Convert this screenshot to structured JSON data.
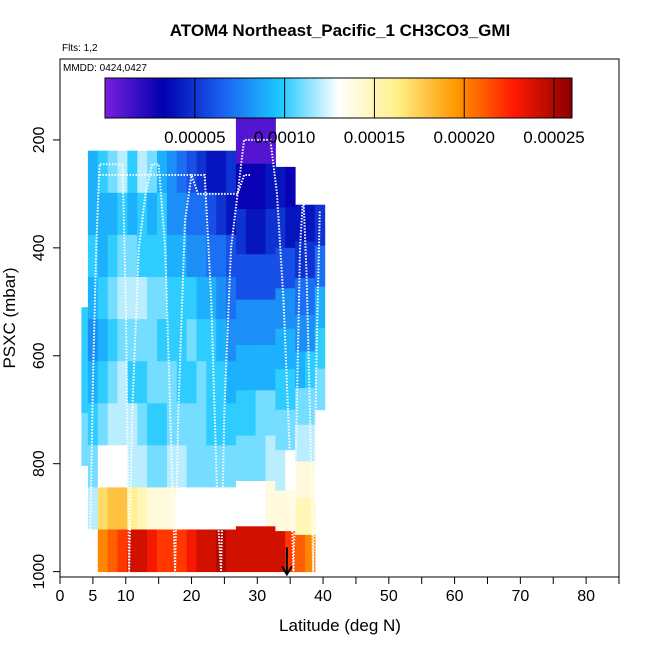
{
  "chart_data": {
    "type": "heatmap",
    "title": "ATOM4 Northeast_Pacific_1 CH3CO3_GMI",
    "flights_label": "Flts: 1,2",
    "dates_label": "MMDD: 0424,0427",
    "xlabel": "Latitude (deg N)",
    "ylabel": "PSXC (mbar)",
    "xlim": [
      0,
      85
    ],
    "ylim": [
      1010,
      50
    ],
    "y_reversed": true,
    "x_ticks": [
      0,
      5,
      10,
      20,
      30,
      40,
      50,
      60,
      70,
      80
    ],
    "y_ticks": [
      200,
      400,
      600,
      800,
      1000
    ],
    "colorbar": {
      "min": 0.0,
      "max": 0.00026,
      "ticks": [
        5e-05,
        0.0001,
        0.00015,
        0.0002,
        0.00025
      ],
      "tick_labels": [
        "0.00005",
        "0.00010",
        "0.00015",
        "0.00020",
        "0.00025"
      ],
      "colors": [
        "#7a1fe0",
        "#0000b0",
        "#1a5ff0",
        "#1ec8ff",
        "#ffffff",
        "#fff08a",
        "#ff9a00",
        "#ff1a00",
        "#8a0000"
      ]
    },
    "columns": [
      {
        "lat": 4.0,
        "p_top": 510,
        "p_bottom": 1000,
        "values": [
          0.0001,
          0.0001,
          0.00011,
          0.00013,
          0.00013
        ]
      },
      {
        "lat": 5.0,
        "p_top": 220,
        "p_bottom": 1000,
        "values": [
          9e-05,
          9e-05,
          0.0001,
          9e-05,
          8e-05,
          9e-05,
          0.0001,
          0.00011,
          0.00012,
          0.00013
        ]
      },
      {
        "lat": 6.5,
        "p_top": 220,
        "p_bottom": 1000,
        "values": [
          0.0001,
          9e-05,
          9e-05,
          0.0001,
          9e-05,
          0.0001,
          0.00011,
          0.00013,
          0.00017,
          0.0002
        ]
      },
      {
        "lat": 8.0,
        "p_top": 220,
        "p_bottom": 1000,
        "values": [
          0.00011,
          9e-05,
          0.0001,
          0.00011,
          0.0001,
          0.00011,
          0.00012,
          0.00013,
          0.00018,
          0.00021
        ]
      },
      {
        "lat": 9.5,
        "p_top": 220,
        "p_bottom": 1000,
        "values": [
          0.00012,
          0.0001,
          0.00011,
          0.00012,
          0.00011,
          0.00012,
          0.00012,
          0.00013,
          0.00018,
          0.00022
        ]
      },
      {
        "lat": 11.0,
        "p_top": 220,
        "p_bottom": 1000,
        "values": [
          0.0001,
          9e-05,
          0.00011,
          0.00012,
          0.00011,
          0.0001,
          0.00012,
          0.00012,
          0.00016,
          0.00024
        ]
      },
      {
        "lat": 12.5,
        "p_top": 220,
        "p_bottom": 1000,
        "values": [
          0.00012,
          0.0001,
          0.0001,
          0.00012,
          0.00011,
          0.0001,
          0.00011,
          0.00012,
          0.00015,
          0.00024
        ]
      },
      {
        "lat": 14.0,
        "p_top": 220,
        "p_bottom": 1000,
        "values": [
          0.00011,
          9e-05,
          0.0001,
          0.00011,
          0.00011,
          0.00011,
          0.0001,
          0.00011,
          0.00014,
          0.00023
        ]
      },
      {
        "lat": 15.5,
        "p_top": 220,
        "p_bottom": 1000,
        "values": [
          9e-05,
          0.0001,
          0.0001,
          0.00011,
          0.0001,
          0.00011,
          0.0001,
          0.00011,
          0.00014,
          0.00022
        ]
      },
      {
        "lat": 17.0,
        "p_top": 220,
        "p_bottom": 1000,
        "values": [
          8e-05,
          8e-05,
          9e-05,
          0.0001,
          0.0001,
          0.00011,
          0.00011,
          0.00012,
          0.00014,
          0.00022
        ]
      },
      {
        "lat": 18.5,
        "p_top": 220,
        "p_bottom": 1000,
        "values": [
          7e-05,
          8e-05,
          9e-05,
          0.0001,
          0.0001,
          0.0001,
          0.00011,
          0.00012,
          0.00013,
          0.00022
        ]
      },
      {
        "lat": 20.0,
        "p_top": 220,
        "p_bottom": 1000,
        "values": [
          6e-05,
          7e-05,
          8e-05,
          0.0001,
          0.00011,
          0.0001,
          0.00011,
          0.00011,
          0.00013,
          0.00023
        ]
      },
      {
        "lat": 21.5,
        "p_top": 220,
        "p_bottom": 1000,
        "values": [
          5e-05,
          7e-05,
          8e-05,
          9e-05,
          0.0001,
          0.00011,
          0.00011,
          0.00011,
          0.00013,
          0.00024
        ]
      },
      {
        "lat": 23.0,
        "p_top": 220,
        "p_bottom": 1000,
        "values": [
          4e-05,
          6e-05,
          7e-05,
          9e-05,
          0.0001,
          0.0001,
          0.0001,
          0.00011,
          0.00013,
          0.00024
        ]
      },
      {
        "lat": 24.5,
        "p_top": 220,
        "p_bottom": 1000,
        "values": [
          4e-05,
          5e-05,
          7e-05,
          8e-05,
          9e-05,
          0.0001,
          0.0001,
          0.00011,
          0.00013,
          0.00025
        ]
      },
      {
        "lat": 26.0,
        "p_top": 220,
        "p_bottom": 1000,
        "values": [
          5e-05,
          4e-05,
          6e-05,
          7e-05,
          8e-05,
          9e-05,
          0.0001,
          0.00011,
          0.00013,
          0.00024
        ]
      },
      {
        "lat": 27.5,
        "p_top": 160,
        "p_bottom": 1000,
        "values": [
          1e-05,
          3e-05,
          5e-05,
          6e-05,
          8e-05,
          9e-05,
          0.0001,
          0.00011,
          0.00013,
          0.00024
        ]
      },
      {
        "lat": 29.0,
        "p_top": 160,
        "p_bottom": 1000,
        "values": [
          1e-05,
          3e-05,
          4e-05,
          6e-05,
          8e-05,
          9e-05,
          0.0001,
          0.00011,
          0.00013,
          0.00024
        ]
      },
      {
        "lat": 30.5,
        "p_top": 160,
        "p_bottom": 1000,
        "values": [
          1e-05,
          3e-05,
          4e-05,
          6e-05,
          8e-05,
          9e-05,
          0.00011,
          0.00011,
          0.00013,
          0.00024
        ]
      },
      {
        "lat": 32.0,
        "p_top": 160,
        "p_bottom": 1000,
        "values": [
          1e-05,
          4e-05,
          5e-05,
          6e-05,
          8e-05,
          9e-05,
          0.00011,
          0.00012,
          0.00014,
          0.00024
        ]
      },
      {
        "lat": 33.5,
        "p_top": 250,
        "p_bottom": 1000,
        "values": [
          4e-05,
          5e-05,
          6e-05,
          8e-05,
          9e-05,
          0.0001,
          0.00011,
          0.00012,
          0.00014,
          0.00024
        ]
      },
      {
        "lat": 35.0,
        "p_top": 250,
        "p_bottom": 1000,
        "values": [
          3e-05,
          4e-05,
          6e-05,
          8e-05,
          9e-05,
          0.0001,
          0.00011,
          0.00013,
          0.00014,
          0.00022
        ]
      },
      {
        "lat": 36.5,
        "p_top": 320,
        "p_bottom": 1000,
        "values": [
          4e-05,
          5e-05,
          7e-05,
          8e-05,
          9e-05,
          0.00011,
          0.00012,
          0.00014,
          0.00015,
          0.00021
        ]
      },
      {
        "lat": 38.0,
        "p_top": 320,
        "p_bottom": 1000,
        "values": [
          4e-05,
          5e-05,
          7e-05,
          8e-05,
          0.0001,
          0.00011,
          0.00012,
          0.00014,
          0.00015,
          0.0002
        ]
      },
      {
        "lat": 39.5,
        "p_top": 320,
        "p_bottom": 700,
        "values": [
          5e-05,
          7e-05,
          9e-05,
          0.0001,
          0.00011
        ]
      }
    ],
    "flight_tracks": [
      {
        "name": "track-1",
        "points": [
          [
            4.5,
            1000
          ],
          [
            5.0,
            650
          ],
          [
            5.5,
            400
          ],
          [
            6.0,
            245
          ],
          [
            9.5,
            245
          ],
          [
            10.0,
            500
          ],
          [
            10.5,
            1000
          ],
          [
            11.0,
            700
          ],
          [
            12.0,
            400
          ],
          [
            13.0,
            300
          ],
          [
            14.0,
            245
          ],
          [
            15.0,
            245
          ],
          [
            16.0,
            400
          ],
          [
            17.0,
            800
          ],
          [
            17.5,
            1000
          ],
          [
            18.0,
            700
          ],
          [
            19.0,
            350
          ],
          [
            20.0,
            265
          ],
          [
            22.0,
            265
          ],
          [
            23.0,
            500
          ],
          [
            24.0,
            900
          ],
          [
            24.5,
            1000
          ],
          [
            25.0,
            700
          ],
          [
            26.0,
            400
          ],
          [
            27.0,
            300
          ],
          [
            28.0,
            265
          ],
          [
            29.0,
            265
          ]
        ]
      },
      {
        "name": "track-2",
        "points": [
          [
            6.0,
            265
          ],
          [
            20.0,
            265
          ],
          [
            21.0,
            300
          ],
          [
            27.0,
            300
          ],
          [
            28.0,
            200
          ],
          [
            32.0,
            200
          ],
          [
            33.0,
            300
          ],
          [
            34.0,
            500
          ],
          [
            35.0,
            800
          ],
          [
            35.5,
            1000
          ],
          [
            36.0,
            700
          ],
          [
            36.5,
            400
          ],
          [
            37.0,
            300
          ],
          [
            37.5,
            450
          ],
          [
            38.0,
            700
          ],
          [
            38.5,
            1000
          ],
          [
            39.0,
            600
          ],
          [
            39.5,
            330
          ]
        ]
      }
    ],
    "marker": {
      "type": "down-arrow",
      "lat": 34.5,
      "p_top": 955,
      "p_bottom": 1005
    }
  }
}
